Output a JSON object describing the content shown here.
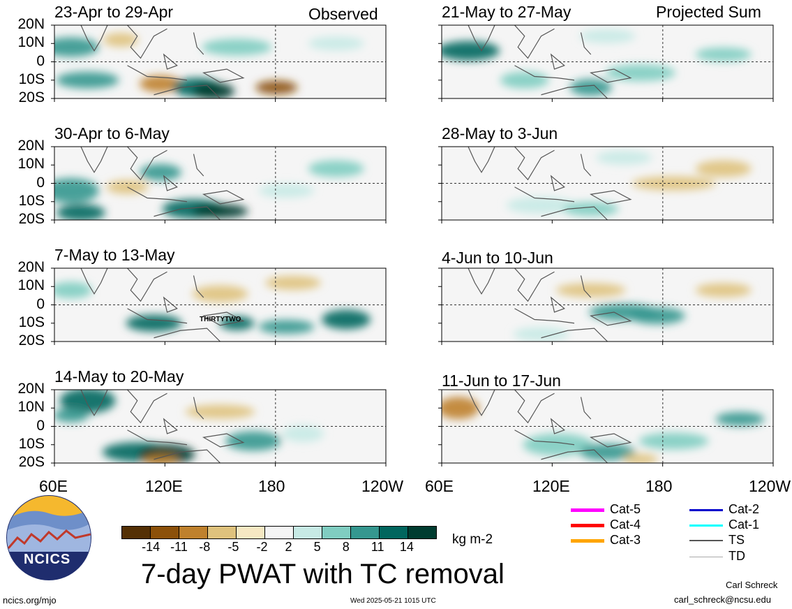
{
  "observed_label": "Observed",
  "projected_label": "Projected Sum",
  "observed_periods": [
    "23-Apr to 29-Apr",
    "30-Apr to 6-May",
    "7-May to 13-May",
    "14-May to 20-May"
  ],
  "projected_periods": [
    "21-May to 27-May",
    "28-May to 3-Jun",
    "4-Jun to 10-Jun",
    "11-Jun to 17-Jun"
  ],
  "lat_labels": [
    "20N",
    "10N",
    "0",
    "10S",
    "20S"
  ],
  "lon_labels_left": [
    "60E",
    "120E",
    "180",
    "120W"
  ],
  "lon_labels_right": [
    "60E",
    "120E",
    "180",
    "120W"
  ],
  "storm_label": "THIRTYTWO",
  "colorbar": {
    "ticks": [
      "-14",
      "-11",
      "-8",
      "-5",
      "-2",
      "2",
      "5",
      "8",
      "11",
      "14"
    ],
    "colors": [
      "#543005",
      "#8c510a",
      "#bf812d",
      "#dfc27d",
      "#f6e8c3",
      "#f5f5f5",
      "#c7eae5",
      "#80cdc1",
      "#35978f",
      "#01665e",
      "#003c30"
    ],
    "units": "kg m-2"
  },
  "title": "7-day PWAT with TC removal",
  "logo_text": "NCICS",
  "url": "ncics.org/mjo",
  "timestamp": "Wed 2025-05-21 1015 UTC",
  "author": "Carl Schreck",
  "email": "carl_schreck@ncsu.edu",
  "legend": [
    {
      "label": "Cat-5",
      "color": "#ff00ff"
    },
    {
      "label": "Cat-4",
      "color": "#ff0000"
    },
    {
      "label": "Cat-3",
      "color": "#ffa500"
    },
    {
      "label": "Cat-2",
      "color": "#0000cd"
    },
    {
      "label": "Cat-1",
      "color": "#00ffff"
    },
    {
      "label": "TS",
      "color": "#555555"
    },
    {
      "label": "TD",
      "color": "#aaaaaa"
    }
  ]
}
